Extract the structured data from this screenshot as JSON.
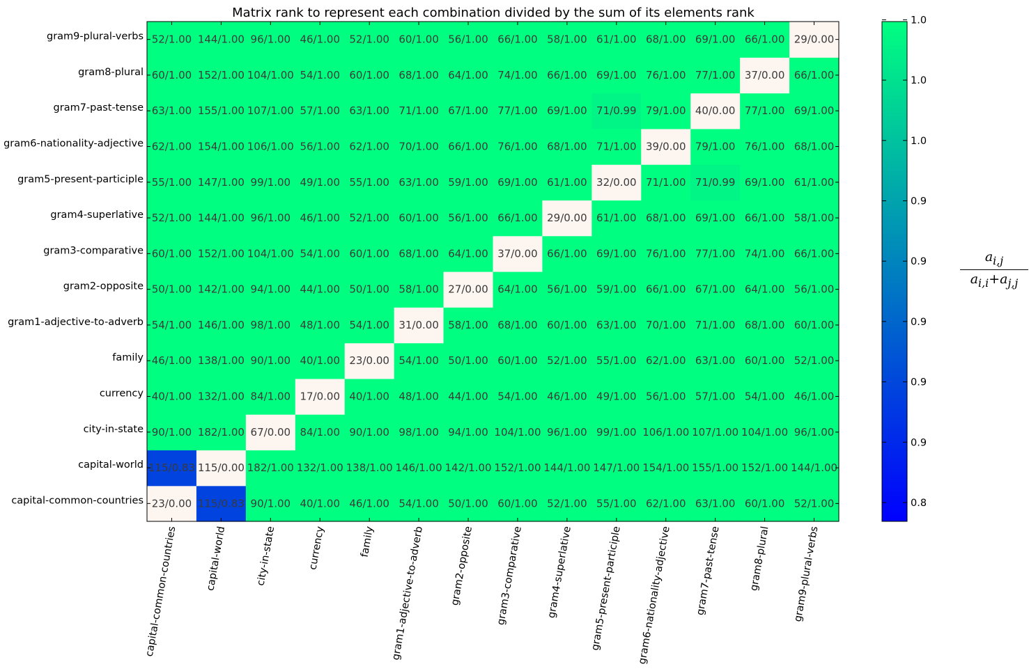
{
  "chart_data": {
    "type": "heatmap",
    "title": "Matrix rank to represent each combination divided by the sum of its elements rank",
    "categories": [
      "capital-common-countries",
      "capital-world",
      "city-in-state",
      "currency",
      "family",
      "gram1-adjective-to-adverb",
      "gram2-opposite",
      "gram3-comparative",
      "gram4-superlative",
      "gram5-present-participle",
      "gram6-nationality-adjective",
      "gram7-past-tense",
      "gram8-plural",
      "gram9-plural-verbs"
    ],
    "rows": [
      {
        "category": "capital-common-countries",
        "cells": [
          "23/0.00",
          "115/0.83",
          "90/1.00",
          "40/1.00",
          "46/1.00",
          "54/1.00",
          "50/1.00",
          "60/1.00",
          "52/1.00",
          "55/1.00",
          "62/1.00",
          "63/1.00",
          "60/1.00",
          "52/1.00"
        ],
        "values": [
          0.0,
          0.83,
          1.0,
          1.0,
          1.0,
          1.0,
          1.0,
          1.0,
          1.0,
          1.0,
          1.0,
          1.0,
          1.0,
          1.0
        ]
      },
      {
        "category": "capital-world",
        "cells": [
          "115/0.83",
          "115/0.00",
          "182/1.00",
          "132/1.00",
          "138/1.00",
          "146/1.00",
          "142/1.00",
          "152/1.00",
          "144/1.00",
          "147/1.00",
          "154/1.00",
          "155/1.00",
          "152/1.00",
          "144/1.00"
        ],
        "values": [
          0.83,
          0.0,
          1.0,
          1.0,
          1.0,
          1.0,
          1.0,
          1.0,
          1.0,
          1.0,
          1.0,
          1.0,
          1.0,
          1.0
        ]
      },
      {
        "category": "city-in-state",
        "cells": [
          "90/1.00",
          "182/1.00",
          "67/0.00",
          "84/1.00",
          "90/1.00",
          "98/1.00",
          "94/1.00",
          "104/1.00",
          "96/1.00",
          "99/1.00",
          "106/1.00",
          "107/1.00",
          "104/1.00",
          "96/1.00"
        ],
        "values": [
          1.0,
          1.0,
          0.0,
          1.0,
          1.0,
          1.0,
          1.0,
          1.0,
          1.0,
          1.0,
          1.0,
          1.0,
          1.0,
          1.0
        ]
      },
      {
        "category": "currency",
        "cells": [
          "40/1.00",
          "132/1.00",
          "84/1.00",
          "17/0.00",
          "40/1.00",
          "48/1.00",
          "44/1.00",
          "54/1.00",
          "46/1.00",
          "49/1.00",
          "56/1.00",
          "57/1.00",
          "54/1.00",
          "46/1.00"
        ],
        "values": [
          1.0,
          1.0,
          1.0,
          0.0,
          1.0,
          1.0,
          1.0,
          1.0,
          1.0,
          1.0,
          1.0,
          1.0,
          1.0,
          1.0
        ]
      },
      {
        "category": "family",
        "cells": [
          "46/1.00",
          "138/1.00",
          "90/1.00",
          "40/1.00",
          "23/0.00",
          "54/1.00",
          "50/1.00",
          "60/1.00",
          "52/1.00",
          "55/1.00",
          "62/1.00",
          "63/1.00",
          "60/1.00",
          "52/1.00"
        ],
        "values": [
          1.0,
          1.0,
          1.0,
          1.0,
          0.0,
          1.0,
          1.0,
          1.0,
          1.0,
          1.0,
          1.0,
          1.0,
          1.0,
          1.0
        ]
      },
      {
        "category": "gram1-adjective-to-adverb",
        "cells": [
          "54/1.00",
          "146/1.00",
          "98/1.00",
          "48/1.00",
          "54/1.00",
          "31/0.00",
          "58/1.00",
          "68/1.00",
          "60/1.00",
          "63/1.00",
          "70/1.00",
          "71/1.00",
          "68/1.00",
          "60/1.00"
        ],
        "values": [
          1.0,
          1.0,
          1.0,
          1.0,
          1.0,
          0.0,
          1.0,
          1.0,
          1.0,
          1.0,
          1.0,
          1.0,
          1.0,
          1.0
        ]
      },
      {
        "category": "gram2-opposite",
        "cells": [
          "50/1.00",
          "142/1.00",
          "94/1.00",
          "44/1.00",
          "50/1.00",
          "58/1.00",
          "27/0.00",
          "64/1.00",
          "56/1.00",
          "59/1.00",
          "66/1.00",
          "67/1.00",
          "64/1.00",
          "56/1.00"
        ],
        "values": [
          1.0,
          1.0,
          1.0,
          1.0,
          1.0,
          1.0,
          0.0,
          1.0,
          1.0,
          1.0,
          1.0,
          1.0,
          1.0,
          1.0
        ]
      },
      {
        "category": "gram3-comparative",
        "cells": [
          "60/1.00",
          "152/1.00",
          "104/1.00",
          "54/1.00",
          "60/1.00",
          "68/1.00",
          "64/1.00",
          "37/0.00",
          "66/1.00",
          "69/1.00",
          "76/1.00",
          "77/1.00",
          "74/1.00",
          "66/1.00"
        ],
        "values": [
          1.0,
          1.0,
          1.0,
          1.0,
          1.0,
          1.0,
          1.0,
          0.0,
          1.0,
          1.0,
          1.0,
          1.0,
          1.0,
          1.0
        ]
      },
      {
        "category": "gram4-superlative",
        "cells": [
          "52/1.00",
          "144/1.00",
          "96/1.00",
          "46/1.00",
          "52/1.00",
          "60/1.00",
          "56/1.00",
          "66/1.00",
          "29/0.00",
          "61/1.00",
          "68/1.00",
          "69/1.00",
          "66/1.00",
          "58/1.00"
        ],
        "values": [
          1.0,
          1.0,
          1.0,
          1.0,
          1.0,
          1.0,
          1.0,
          1.0,
          0.0,
          1.0,
          1.0,
          1.0,
          1.0,
          1.0
        ]
      },
      {
        "category": "gram5-present-participle",
        "cells": [
          "55/1.00",
          "147/1.00",
          "99/1.00",
          "49/1.00",
          "55/1.00",
          "63/1.00",
          "59/1.00",
          "69/1.00",
          "61/1.00",
          "32/0.00",
          "71/1.00",
          "71/0.99",
          "69/1.00",
          "61/1.00"
        ],
        "values": [
          1.0,
          1.0,
          1.0,
          1.0,
          1.0,
          1.0,
          1.0,
          1.0,
          1.0,
          0.0,
          1.0,
          0.99,
          1.0,
          1.0
        ]
      },
      {
        "category": "gram6-nationality-adjective",
        "cells": [
          "62/1.00",
          "154/1.00",
          "106/1.00",
          "56/1.00",
          "62/1.00",
          "70/1.00",
          "66/1.00",
          "76/1.00",
          "68/1.00",
          "71/1.00",
          "39/0.00",
          "79/1.00",
          "76/1.00",
          "68/1.00"
        ],
        "values": [
          1.0,
          1.0,
          1.0,
          1.0,
          1.0,
          1.0,
          1.0,
          1.0,
          1.0,
          1.0,
          0.0,
          1.0,
          1.0,
          1.0
        ]
      },
      {
        "category": "gram7-past-tense",
        "cells": [
          "63/1.00",
          "155/1.00",
          "107/1.00",
          "57/1.00",
          "63/1.00",
          "71/1.00",
          "67/1.00",
          "77/1.00",
          "69/1.00",
          "71/0.99",
          "79/1.00",
          "40/0.00",
          "77/1.00",
          "69/1.00"
        ],
        "values": [
          1.0,
          1.0,
          1.0,
          1.0,
          1.0,
          1.0,
          1.0,
          1.0,
          1.0,
          0.99,
          1.0,
          0.0,
          1.0,
          1.0
        ]
      },
      {
        "category": "gram8-plural",
        "cells": [
          "60/1.00",
          "152/1.00",
          "104/1.00",
          "54/1.00",
          "60/1.00",
          "68/1.00",
          "64/1.00",
          "74/1.00",
          "66/1.00",
          "69/1.00",
          "76/1.00",
          "77/1.00",
          "37/0.00",
          "66/1.00"
        ],
        "values": [
          1.0,
          1.0,
          1.0,
          1.0,
          1.0,
          1.0,
          1.0,
          1.0,
          1.0,
          1.0,
          1.0,
          1.0,
          0.0,
          1.0
        ]
      },
      {
        "category": "gram9-plural-verbs",
        "cells": [
          "52/1.00",
          "144/1.00",
          "96/1.00",
          "46/1.00",
          "52/1.00",
          "60/1.00",
          "56/1.00",
          "66/1.00",
          "58/1.00",
          "61/1.00",
          "68/1.00",
          "69/1.00",
          "66/1.00",
          "29/0.00"
        ],
        "values": [
          1.0,
          1.0,
          1.0,
          1.0,
          1.0,
          1.0,
          1.0,
          1.0,
          1.0,
          1.0,
          1.0,
          1.0,
          1.0,
          0.0
        ]
      }
    ],
    "colorbar": {
      "tick_labels": [
        "0.8",
        "0.9",
        "0.9",
        "0.9",
        "0.9",
        "0.9",
        "1.0",
        "1.0",
        "1.0"
      ],
      "range": [
        0.77,
        1.0
      ],
      "colormap": [
        "#0000ff",
        "#00ff80"
      ],
      "label_numerator": "a",
      "label_numerator_sub": "i,j",
      "label_denominator": "a",
      "label_denominator_sub1": "i,i",
      "label_denominator_plus": "+a",
      "label_denominator_sub2": "j,j"
    },
    "diagonal_color": "#fdf5f0",
    "grid": false
  }
}
